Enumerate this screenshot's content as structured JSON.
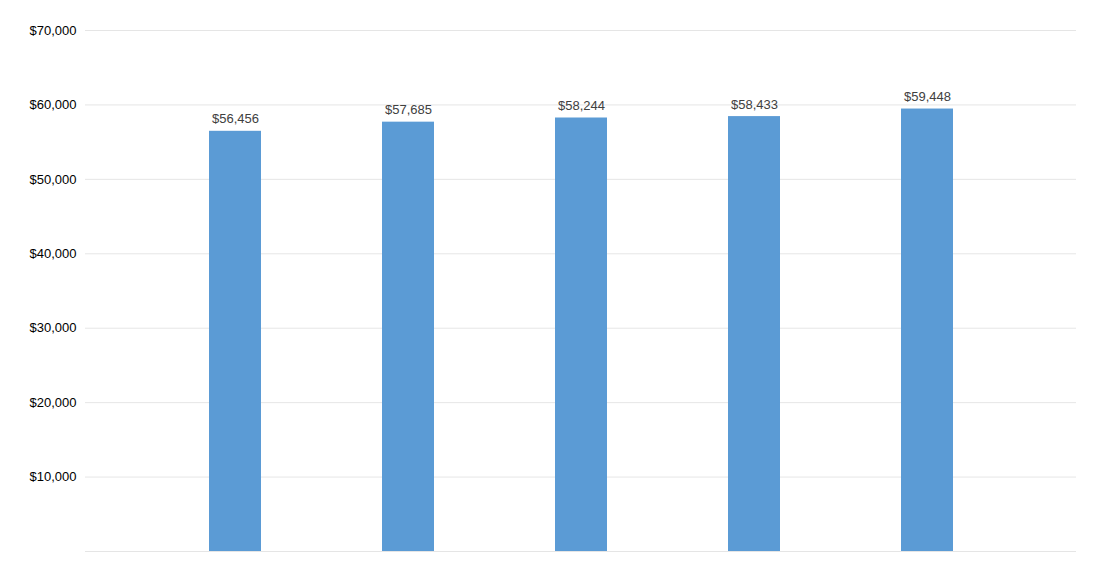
{
  "chart_data": {
    "type": "bar",
    "categories": [
      null,
      null,
      null,
      null,
      null
    ],
    "values": [
      56456,
      57685,
      58244,
      58433,
      59448
    ],
    "value_labels": [
      "$56,456",
      "$57,685",
      "$58,244",
      "$58,433",
      "$59,448"
    ],
    "color": "#5B9BD5",
    "ylim": [
      0,
      70000
    ],
    "yticks": [
      {
        "value": 0,
        "label": null
      },
      {
        "value": 10000,
        "label": "$10,000"
      },
      {
        "value": 20000,
        "label": "$20,000"
      },
      {
        "value": 30000,
        "label": "$30,000"
      },
      {
        "value": 40000,
        "label": "$40,000"
      },
      {
        "value": 50000,
        "label": "$50,000"
      },
      {
        "value": 60000,
        "label": "$60,000"
      },
      {
        "value": 70000,
        "label": "$70,000"
      }
    ],
    "grid": true,
    "data_labels": true
  }
}
